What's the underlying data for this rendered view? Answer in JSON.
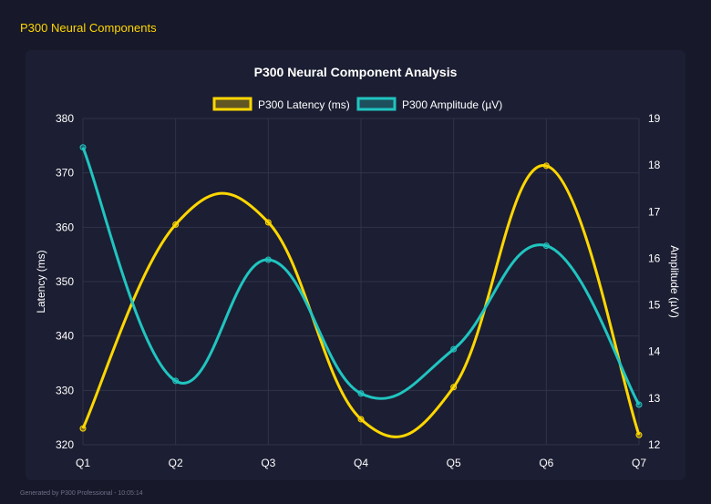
{
  "page_title": "P300 Neural Components",
  "footer": "Generated by P300 Professional - 10:05:14",
  "chart_data": {
    "type": "line",
    "title": "P300 Neural Component Analysis",
    "categories": [
      "Q1",
      "Q2",
      "Q3",
      "Q4",
      "Q5",
      "Q6",
      "Q7"
    ],
    "series": [
      {
        "name": "P300 Latency (ms)",
        "axis": "left",
        "color": "#ffd700",
        "values": [
          323.0,
          360.5,
          360.9,
          324.7,
          330.6,
          371.3,
          321.8
        ]
      },
      {
        "name": "P300 Amplitude (µV)",
        "axis": "right",
        "color": "#20c5c0",
        "values": [
          18.38,
          13.37,
          15.97,
          13.1,
          14.05,
          16.27,
          12.86
        ]
      }
    ],
    "ylabel": "Latency (ms)",
    "y2label": "Amplitude (µV)",
    "ylim": [
      320,
      380
    ],
    "y_ticks": [
      320,
      330,
      340,
      350,
      360,
      370,
      380
    ],
    "y2lim": [
      12,
      19
    ],
    "y2_ticks": [
      12,
      13,
      14,
      15,
      16,
      17,
      18,
      19
    ],
    "grid": true,
    "legend": "top"
  }
}
